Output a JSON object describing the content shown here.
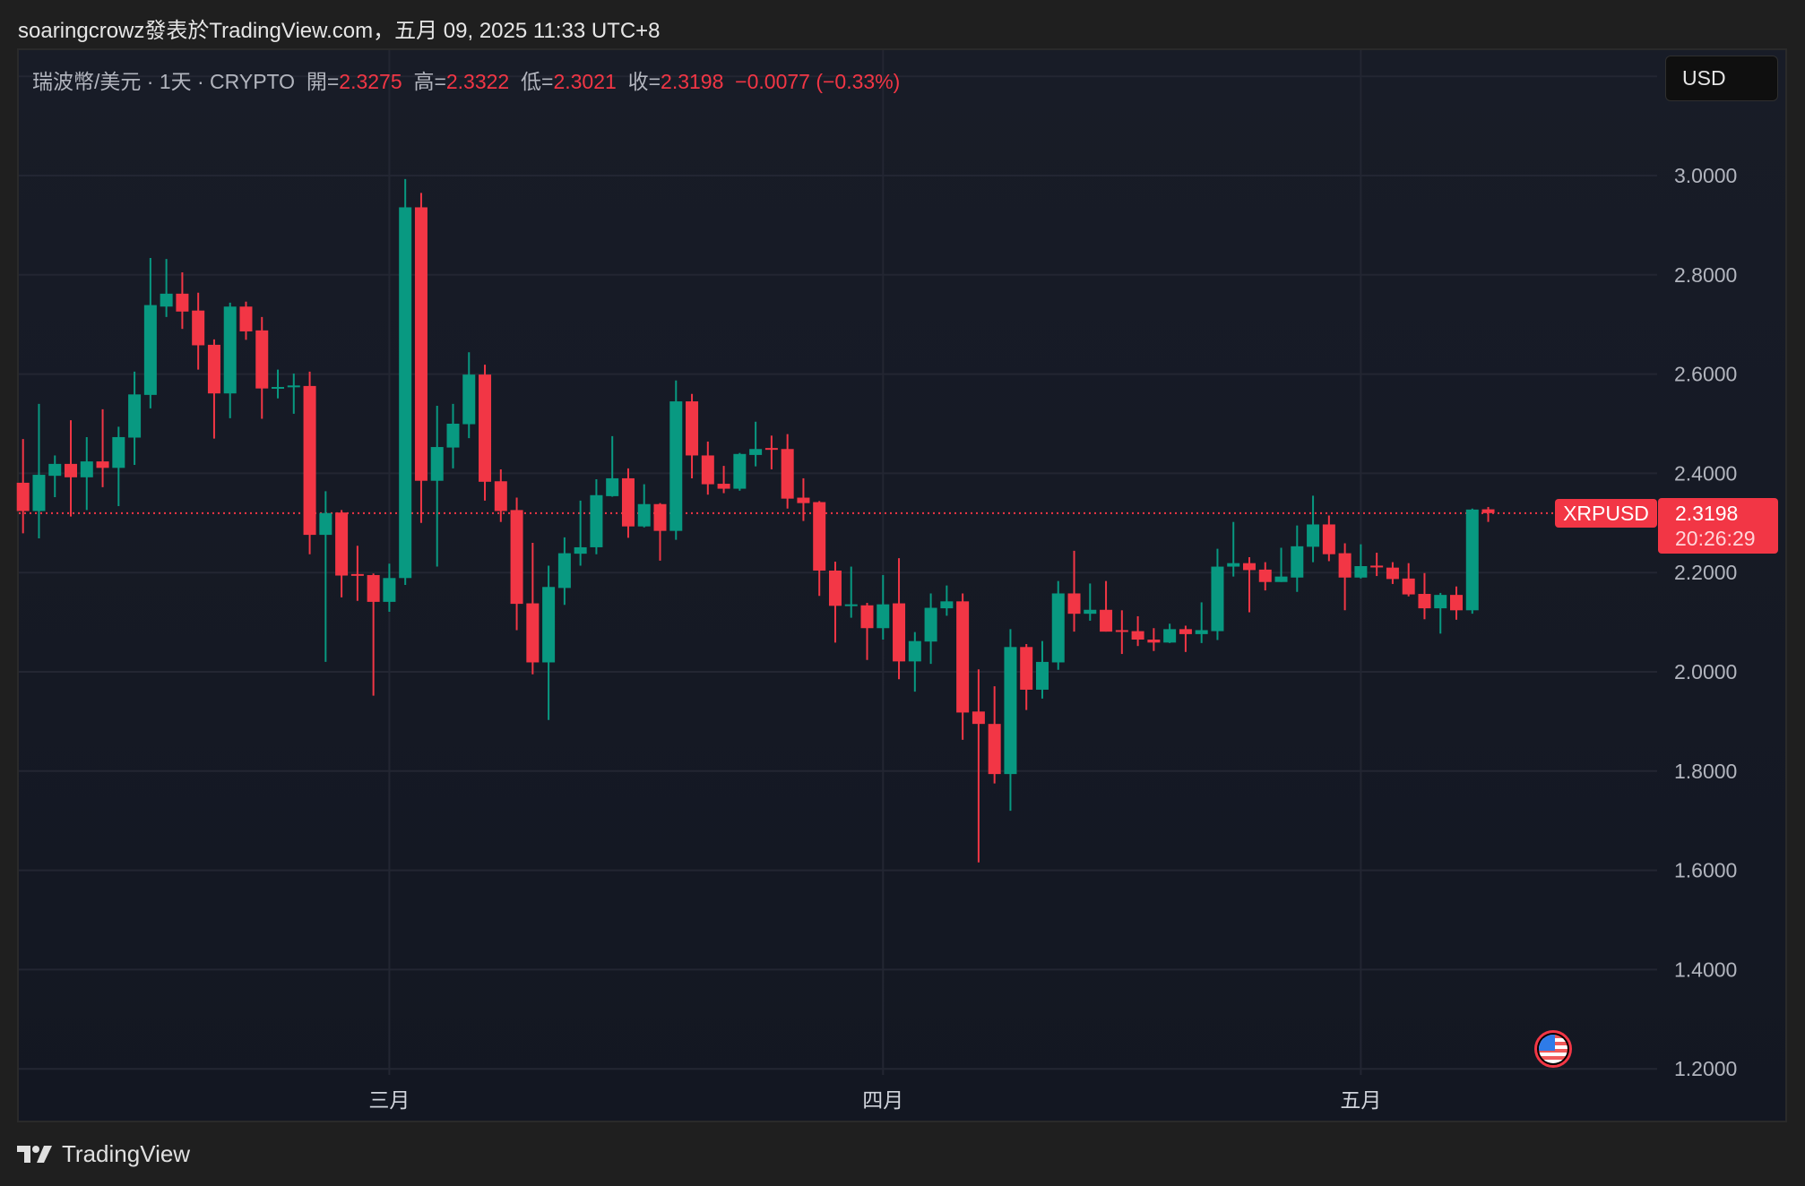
{
  "header": {
    "title": "soaringcrowz發表於TradingView.com，五月 09, 2025 11:33 UTC+8"
  },
  "legend": {
    "symbol": "瑞波幣/美元 · 1天 · CRYPTO",
    "open_label": "開=",
    "open": "2.3275",
    "high_label": "高=",
    "high": "2.3322",
    "low_label": "低=",
    "low": "2.3021",
    "close_label": "收=",
    "close": "2.3198",
    "change": "−0.0077 (−0.33%)"
  },
  "currency_button": "USD",
  "last_price": {
    "symbol": "XRPUSD",
    "price": "2.3198",
    "countdown": "20:26:29"
  },
  "footer": {
    "brand": "TradingView"
  },
  "colors": {
    "up": "#089981",
    "down": "#f23645",
    "grid": "#232632",
    "axis_text": "#b2b5be"
  },
  "chart_data": {
    "type": "candlestick",
    "ylim": [
      1.2,
      3.2
    ],
    "y_ticks": [
      "3.0000",
      "2.8000",
      "2.6000",
      "2.4000",
      "2.2000",
      "2.0000",
      "1.8000",
      "1.6000",
      "1.4000",
      "1.2000"
    ],
    "x_labels": [
      {
        "label": "三月",
        "index": 23
      },
      {
        "label": "四月",
        "index": 54
      },
      {
        "label": "五月",
        "index": 84
      }
    ],
    "last_price": 2.3198,
    "ohlc": [
      [
        2.381,
        2.469,
        2.279,
        2.324
      ],
      [
        2.324,
        2.54,
        2.269,
        2.397
      ],
      [
        2.395,
        2.436,
        2.352,
        2.419
      ],
      [
        2.419,
        2.507,
        2.313,
        2.392
      ],
      [
        2.392,
        2.473,
        2.326,
        2.424
      ],
      [
        2.424,
        2.529,
        2.372,
        2.411
      ],
      [
        2.411,
        2.494,
        2.334,
        2.473
      ],
      [
        2.472,
        2.605,
        2.417,
        2.559
      ],
      [
        2.558,
        2.834,
        2.531,
        2.739
      ],
      [
        2.736,
        2.832,
        2.715,
        2.762
      ],
      [
        2.762,
        2.805,
        2.691,
        2.726
      ],
      [
        2.728,
        2.764,
        2.609,
        2.658
      ],
      [
        2.659,
        2.67,
        2.47,
        2.561
      ],
      [
        2.561,
        2.744,
        2.511,
        2.736
      ],
      [
        2.736,
        2.746,
        2.669,
        2.686
      ],
      [
        2.688,
        2.715,
        2.51,
        2.571
      ],
      [
        2.573,
        2.609,
        2.551,
        2.574
      ],
      [
        2.575,
        2.601,
        2.52,
        2.577
      ],
      [
        2.576,
        2.605,
        2.237,
        2.276
      ],
      [
        2.276,
        2.364,
        2.02,
        2.32
      ],
      [
        2.321,
        2.326,
        2.15,
        2.194
      ],
      [
        2.197,
        2.254,
        2.143,
        2.195
      ],
      [
        2.195,
        2.198,
        1.952,
        2.141
      ],
      [
        2.141,
        2.218,
        2.121,
        2.189
      ],
      [
        2.189,
        2.993,
        2.175,
        2.936
      ],
      [
        2.936,
        2.965,
        2.3,
        2.385
      ],
      [
        2.385,
        2.536,
        2.212,
        2.453
      ],
      [
        2.452,
        2.54,
        2.41,
        2.5
      ],
      [
        2.499,
        2.644,
        2.471,
        2.599
      ],
      [
        2.599,
        2.619,
        2.345,
        2.383
      ],
      [
        2.384,
        2.408,
        2.302,
        2.324
      ],
      [
        2.326,
        2.351,
        2.084,
        2.137
      ],
      [
        2.138,
        2.26,
        1.995,
        2.019
      ],
      [
        2.019,
        2.214,
        1.903,
        2.171
      ],
      [
        2.169,
        2.271,
        2.135,
        2.239
      ],
      [
        2.238,
        2.345,
        2.214,
        2.251
      ],
      [
        2.251,
        2.388,
        2.237,
        2.356
      ],
      [
        2.354,
        2.475,
        2.353,
        2.39
      ],
      [
        2.39,
        2.41,
        2.27,
        2.293
      ],
      [
        2.293,
        2.378,
        2.291,
        2.338
      ],
      [
        2.338,
        2.34,
        2.224,
        2.284
      ],
      [
        2.284,
        2.587,
        2.266,
        2.545
      ],
      [
        2.545,
        2.56,
        2.39,
        2.436
      ],
      [
        2.436,
        2.464,
        2.357,
        2.378
      ],
      [
        2.379,
        2.415,
        2.36,
        2.369
      ],
      [
        2.369,
        2.441,
        2.365,
        2.439
      ],
      [
        2.437,
        2.504,
        2.414,
        2.449
      ],
      [
        2.451,
        2.476,
        2.408,
        2.449
      ],
      [
        2.449,
        2.479,
        2.329,
        2.349
      ],
      [
        2.351,
        2.39,
        2.304,
        2.34
      ],
      [
        2.342,
        2.344,
        2.153,
        2.204
      ],
      [
        2.204,
        2.222,
        2.059,
        2.133
      ],
      [
        2.135,
        2.212,
        2.109,
        2.136
      ],
      [
        2.134,
        2.139,
        2.024,
        2.088
      ],
      [
        2.088,
        2.195,
        2.065,
        2.136
      ],
      [
        2.138,
        2.229,
        1.985,
        2.021
      ],
      [
        2.021,
        2.08,
        1.96,
        2.062
      ],
      [
        2.061,
        2.158,
        2.016,
        2.129
      ],
      [
        2.128,
        2.174,
        2.113,
        2.142
      ],
      [
        2.142,
        2.158,
        1.863,
        1.918
      ],
      [
        1.92,
        2.005,
        1.616,
        1.895
      ],
      [
        1.895,
        1.971,
        1.775,
        1.794
      ],
      [
        1.794,
        2.086,
        1.72,
        2.05
      ],
      [
        2.05,
        2.056,
        1.923,
        1.964
      ],
      [
        1.964,
        2.062,
        1.946,
        2.02
      ],
      [
        2.019,
        2.183,
        2.004,
        2.158
      ],
      [
        2.158,
        2.244,
        2.081,
        2.117
      ],
      [
        2.117,
        2.178,
        2.103,
        2.125
      ],
      [
        2.125,
        2.183,
        2.081,
        2.081
      ],
      [
        2.084,
        2.124,
        2.036,
        2.081
      ],
      [
        2.082,
        2.112,
        2.052,
        2.065
      ],
      [
        2.065,
        2.088,
        2.042,
        2.059
      ],
      [
        2.059,
        2.097,
        2.058,
        2.086
      ],
      [
        2.086,
        2.093,
        2.04,
        2.076
      ],
      [
        2.076,
        2.14,
        2.058,
        2.084
      ],
      [
        2.082,
        2.248,
        2.064,
        2.212
      ],
      [
        2.212,
        2.302,
        2.192,
        2.219
      ],
      [
        2.219,
        2.231,
        2.12,
        2.205
      ],
      [
        2.206,
        2.221,
        2.164,
        2.181
      ],
      [
        2.181,
        2.25,
        2.181,
        2.192
      ],
      [
        2.19,
        2.295,
        2.161,
        2.253
      ],
      [
        2.252,
        2.355,
        2.221,
        2.297
      ],
      [
        2.297,
        2.315,
        2.223,
        2.237
      ],
      [
        2.239,
        2.259,
        2.124,
        2.19
      ],
      [
        2.19,
        2.257,
        2.188,
        2.213
      ],
      [
        2.214,
        2.24,
        2.193,
        2.213
      ],
      [
        2.21,
        2.221,
        2.177,
        2.187
      ],
      [
        2.188,
        2.219,
        2.152,
        2.156
      ],
      [
        2.157,
        2.199,
        2.106,
        2.128
      ],
      [
        2.128,
        2.159,
        2.077,
        2.155
      ],
      [
        2.155,
        2.172,
        2.105,
        2.124
      ],
      [
        2.124,
        2.329,
        2.117,
        2.327
      ],
      [
        2.3275,
        2.3322,
        2.3021,
        2.3198
      ]
    ]
  }
}
